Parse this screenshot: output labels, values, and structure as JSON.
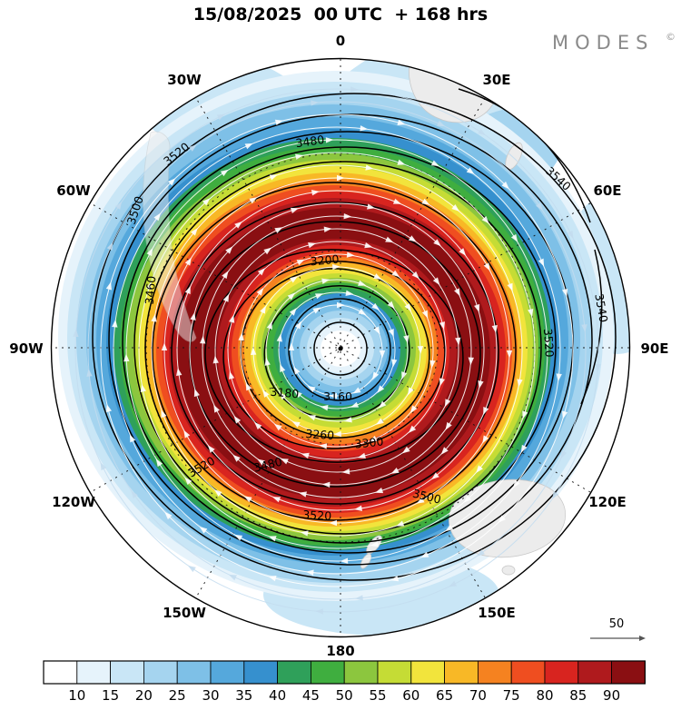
{
  "branding": {
    "logo_text": "MODES",
    "logo_mark": "©"
  },
  "chart_data": {
    "type": "filled-contour-map",
    "projection": "southern-hemisphere polar stereographic",
    "title": "15/08/2025  00 UTC  + 168 hrs",
    "longitude_labels": [
      "0",
      "30E",
      "60E",
      "90E",
      "120E",
      "150E",
      "180",
      "150W",
      "120W",
      "90W",
      "60W",
      "30W"
    ],
    "contour_interval": 20,
    "contour_labels": [
      "3480",
      "3520",
      "3500",
      "3460",
      "3540",
      "3540",
      "3520",
      "3200",
      "3180",
      "3160",
      "3260",
      "3300",
      "3480",
      "3520",
      "3500",
      "3520"
    ],
    "colorbar": {
      "ticks": [
        10,
        15,
        20,
        25,
        30,
        35,
        40,
        45,
        50,
        55,
        60,
        65,
        70,
        75,
        80,
        85,
        90
      ],
      "colors": [
        "#ffffff",
        "#e6f3fb",
        "#c9e6f6",
        "#a5d4ef",
        "#7ec0e7",
        "#55a8dc",
        "#3690ce",
        "#2fa05a",
        "#3fae3f",
        "#8cc63e",
        "#c5dc35",
        "#f2e43c",
        "#f8b826",
        "#f58220",
        "#ef4e20",
        "#d8241f",
        "#af1a1d",
        "#8a0f12"
      ]
    },
    "wind_reference_label": "50",
    "map_colors": {
      "land": "#ececec",
      "coast": "#c8c8c8",
      "contour": "#000000",
      "grid": "#111111",
      "streamline": "#ffffff",
      "streamline_pale": "#c3dcee",
      "background": "#ffffff",
      "logo": "#8a8a8a"
    }
  }
}
